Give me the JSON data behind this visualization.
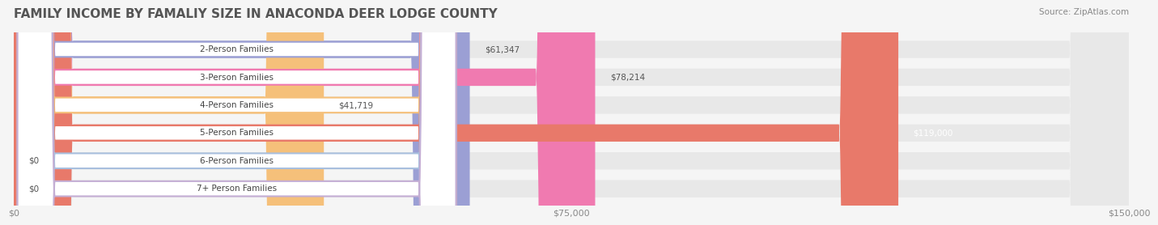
{
  "title": "FAMILY INCOME BY FAMALIY SIZE IN ANACONDA DEER LODGE COUNTY",
  "source": "Source: ZipAtlas.com",
  "categories": [
    "2-Person Families",
    "3-Person Families",
    "4-Person Families",
    "5-Person Families",
    "6-Person Families",
    "7+ Person Families"
  ],
  "values": [
    61347,
    78214,
    41719,
    119000,
    0,
    0
  ],
  "bar_colors": [
    "#9b9fd4",
    "#f07ab0",
    "#f5c07a",
    "#e8796a",
    "#a8bfde",
    "#c4aed4"
  ],
  "label_colors": [
    "#555555",
    "#555555",
    "#555555",
    "#ffffff",
    "#555555",
    "#555555"
  ],
  "value_labels": [
    "$61,347",
    "$78,214",
    "$41,719",
    "$119,000",
    "$0",
    "$0"
  ],
  "xlim": [
    0,
    150000
  ],
  "xticks": [
    0,
    75000,
    150000
  ],
  "xticklabels": [
    "$0",
    "$75,000",
    "$150,000"
  ],
  "bg_color": "#f5f5f5",
  "bar_bg_color": "#e8e8e8",
  "title_fontsize": 11,
  "bar_height": 0.62,
  "label_box_color": "#ffffff",
  "label_box_edge_colors": [
    "#9b9fd4",
    "#f07ab0",
    "#f5c07a",
    "#e8796a",
    "#a8bfde",
    "#c4aed4"
  ]
}
